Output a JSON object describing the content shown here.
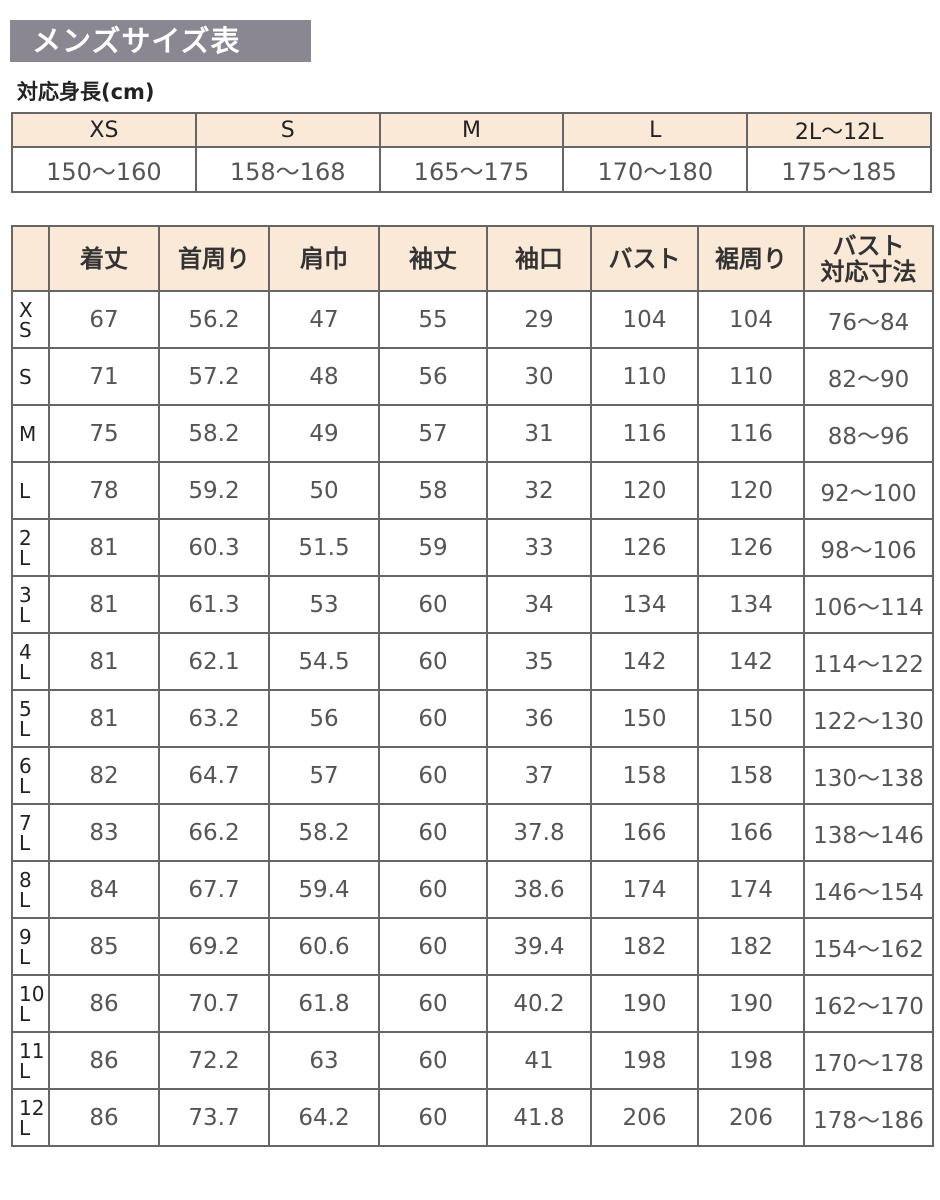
{
  "title": "メンズサイズ表",
  "height_table": {
    "caption": "対応身長(cm)",
    "sizes": [
      "XS",
      "S",
      "M",
      "L",
      "2L〜12L"
    ],
    "heights": [
      "150〜160",
      "158〜168",
      "165〜175",
      "170〜180",
      "175〜185"
    ]
  },
  "size_table": {
    "headers": [
      "",
      "着丈",
      "首周り",
      "肩巾",
      "袖丈",
      "袖口",
      "バスト",
      "裾周り",
      "バスト\n対応寸法"
    ],
    "rows": [
      [
        "X\nS",
        "67",
        "56.2",
        "47",
        "55",
        "29",
        "104",
        "104",
        "76〜84"
      ],
      [
        "S",
        "71",
        "57.2",
        "48",
        "56",
        "30",
        "110",
        "110",
        "82〜90"
      ],
      [
        "M",
        "75",
        "58.2",
        "49",
        "57",
        "31",
        "116",
        "116",
        "88〜96"
      ],
      [
        "L",
        "78",
        "59.2",
        "50",
        "58",
        "32",
        "120",
        "120",
        "92〜100"
      ],
      [
        "2\nL",
        "81",
        "60.3",
        "51.5",
        "59",
        "33",
        "126",
        "126",
        "98〜106"
      ],
      [
        "3\nL",
        "81",
        "61.3",
        "53",
        "60",
        "34",
        "134",
        "134",
        "106〜114"
      ],
      [
        "4\nL",
        "81",
        "62.1",
        "54.5",
        "60",
        "35",
        "142",
        "142",
        "114〜122"
      ],
      [
        "5\nL",
        "81",
        "63.2",
        "56",
        "60",
        "36",
        "150",
        "150",
        "122〜130"
      ],
      [
        "6\nL",
        "82",
        "64.7",
        "57",
        "60",
        "37",
        "158",
        "158",
        "130〜138"
      ],
      [
        "7\nL",
        "83",
        "66.2",
        "58.2",
        "60",
        "37.8",
        "166",
        "166",
        "138〜146"
      ],
      [
        "8\nL",
        "84",
        "67.7",
        "59.4",
        "60",
        "38.6",
        "174",
        "174",
        "146〜154"
      ],
      [
        "9\nL",
        "85",
        "69.2",
        "60.6",
        "60",
        "39.4",
        "182",
        "182",
        "154〜162"
      ],
      [
        "10\nL",
        "86",
        "70.7",
        "61.8",
        "60",
        "40.2",
        "190",
        "190",
        "162〜170"
      ],
      [
        "11\nL",
        "86",
        "72.2",
        "63",
        "60",
        "41",
        "198",
        "198",
        "170〜178"
      ],
      [
        "12\nL",
        "86",
        "73.7",
        "64.2",
        "60",
        "41.8",
        "206",
        "206",
        "178〜186"
      ]
    ]
  }
}
